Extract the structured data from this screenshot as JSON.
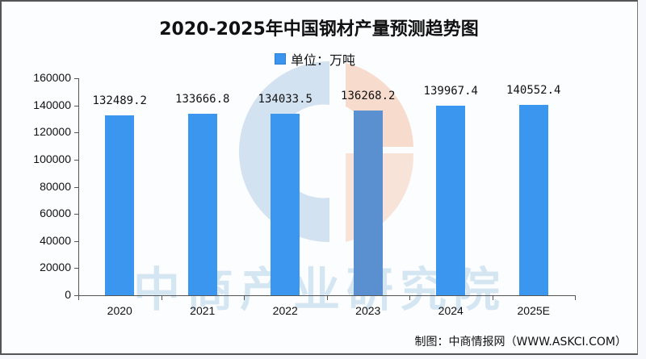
{
  "title": "2020-2025年中国钢材产量预测趋势图",
  "legend": {
    "label": "单位：万吨",
    "color": "#3b94ee"
  },
  "watermark": "中商产业研究院",
  "source": "制图：中商情报网（WWW.ASKCI.COM）",
  "y_ticks": [
    "0",
    "20000",
    "40000",
    "60000",
    "80000",
    "100000",
    "120000",
    "140000",
    "160000"
  ],
  "chart_data": {
    "type": "bar",
    "title": "2020-2025年中国钢材产量预测趋势图",
    "xlabel": "",
    "ylabel": "单位：万吨",
    "categories": [
      "2020",
      "2021",
      "2022",
      "2023",
      "2024",
      "2025E"
    ],
    "values": [
      132489.2,
      133666.8,
      134033.5,
      136268.2,
      139967.4,
      140552.4
    ],
    "value_labels": [
      "132489.2",
      "133666.8",
      "134033.5",
      "136268.2",
      "139967.4",
      "140552.4"
    ],
    "ylim": [
      0,
      160000
    ],
    "grid": false,
    "legend_position": "top",
    "bar_color": "#3a96ef"
  }
}
